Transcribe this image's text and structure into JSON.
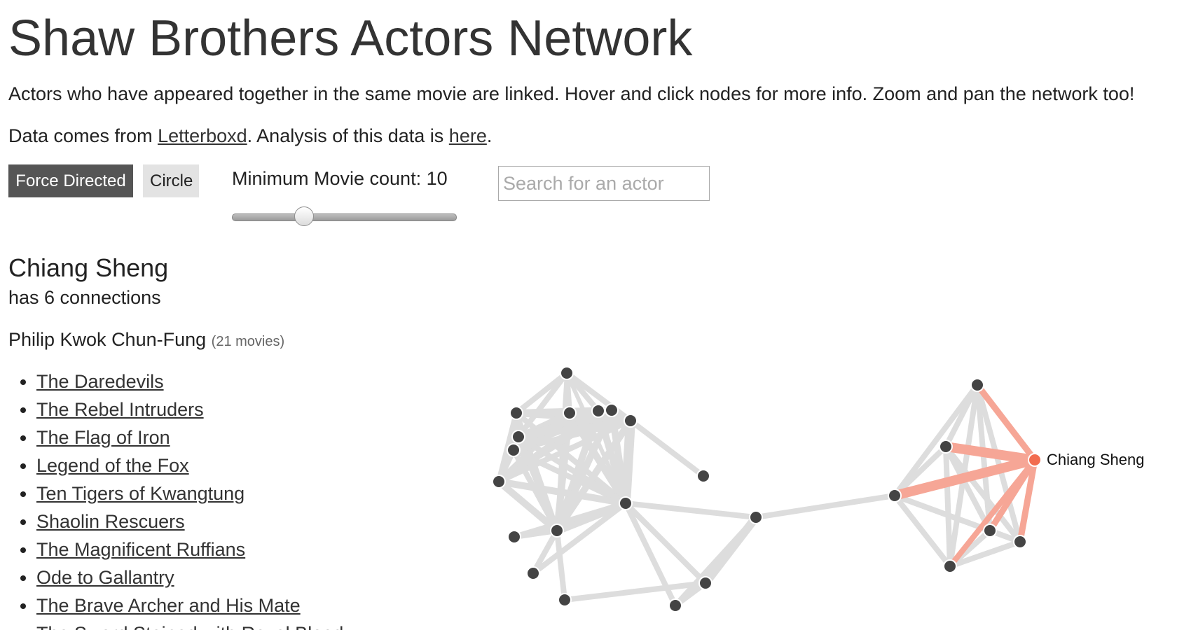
{
  "title": "Shaw Brothers Actors Network",
  "intro": "Actors who have appeared together in the same movie are linked. Hover and click nodes for more info. Zoom and pan the network too!",
  "source": {
    "prefix": "Data comes from ",
    "link1": "Letterboxd",
    "middle": ". Analysis of this data is ",
    "link2": "here",
    "suffix": "."
  },
  "controls": {
    "force_label": "Force Directed",
    "circle_label": "Circle",
    "slider_label": "Minimum Movie count: 10",
    "min_movie_count": 10,
    "search_placeholder": "Search for an actor"
  },
  "selected": {
    "name": "Chiang Sheng",
    "connections": "has 6 connections",
    "co_actor": "Philip Kwok Chun-Fung",
    "co_actor_count": "(21 movies)",
    "movies": [
      "The Daredevils",
      "The Rebel Intruders",
      "The Flag of Iron",
      "Legend of the Fox",
      "Ten Tigers of Kwangtung",
      "Shaolin Rescuers",
      "The Magnificent Ruffians",
      "Ode to Gallantry",
      "The Brave Archer and His Mate",
      "The Sword Stained with Royal Blood"
    ]
  },
  "network": {
    "node_label": "Chiang Sheng",
    "colors": {
      "node": "#444444",
      "link": "#dddddd",
      "highlight_node": "#f26c4f",
      "highlight_link": "#f6a696"
    }
  }
}
